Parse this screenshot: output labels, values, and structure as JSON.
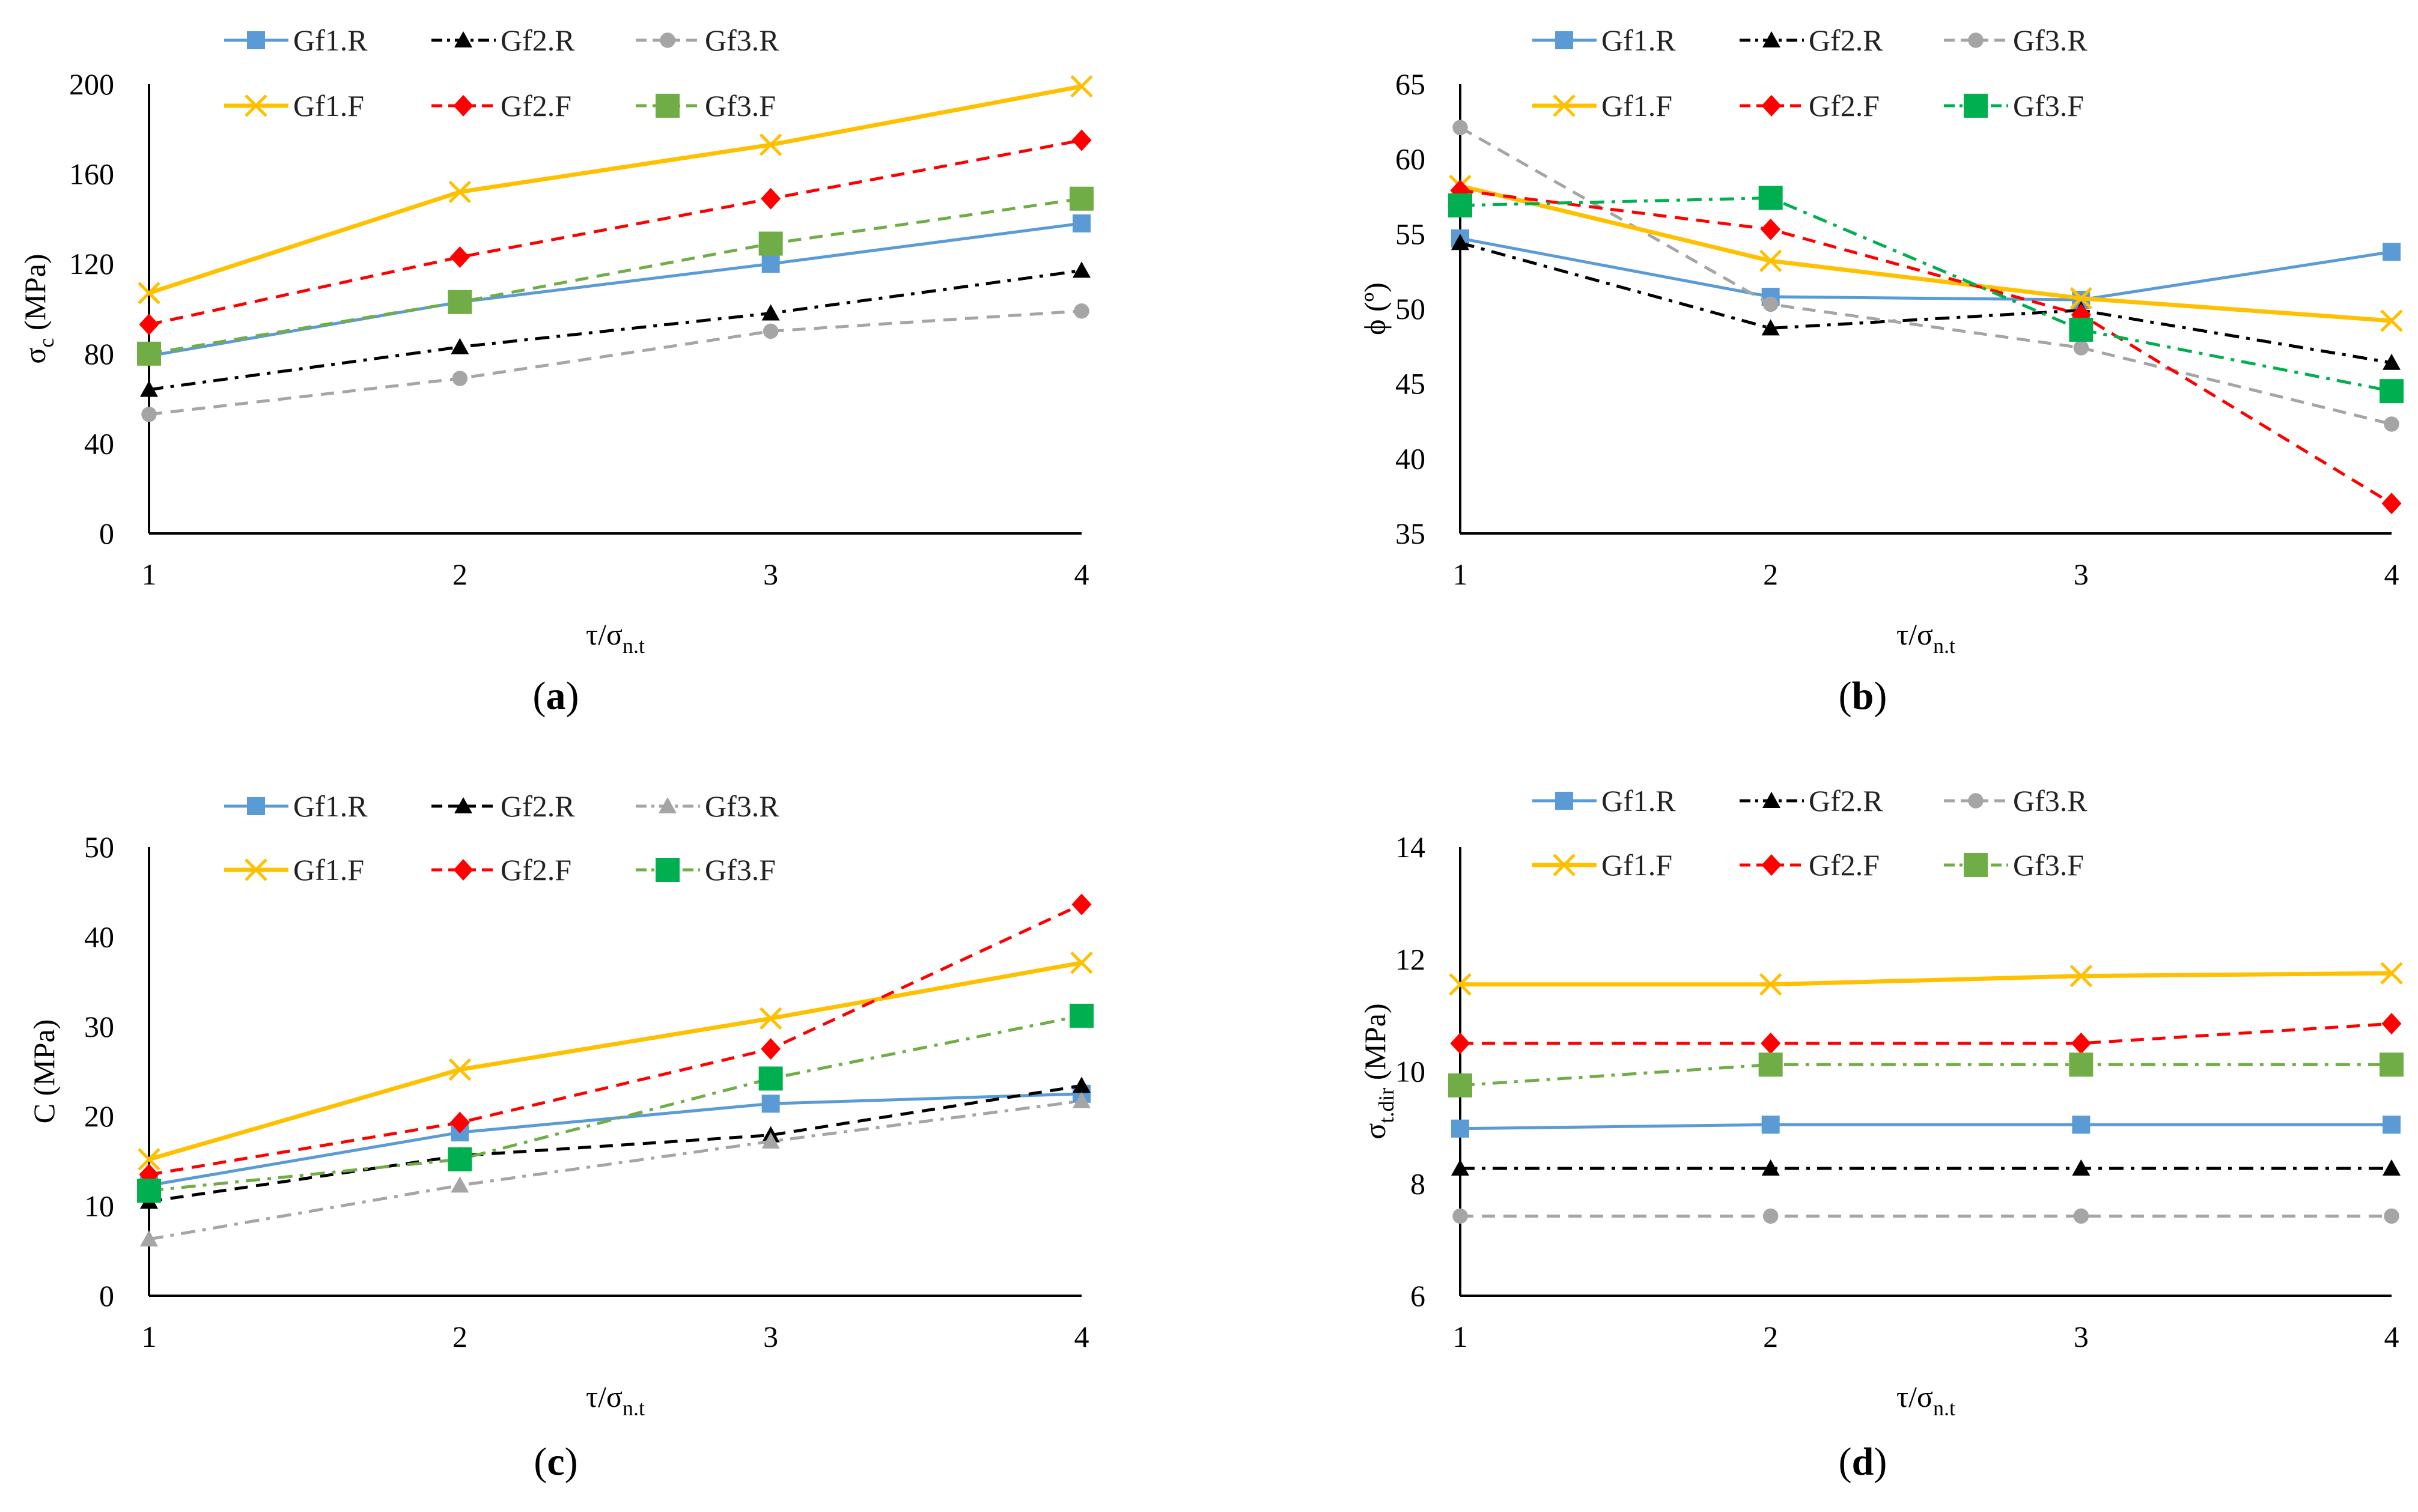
{
  "styles": {
    "Gf1.R": {
      "color": "#5B9BD5",
      "dash": "",
      "marker": "square",
      "width": 5
    },
    "Gf2.R": {
      "color": "#000000",
      "dash": "24,12,6,12",
      "marker": "triangle",
      "width": 5
    },
    "Gf3.R": {
      "color": "#A5A5A5",
      "dash": "22,14",
      "marker": "circle",
      "width": 5
    },
    "Gf1.F": {
      "color": "#FFC000",
      "dash": "",
      "marker": "x",
      "width": 7
    },
    "Gf2.F": {
      "color": "#FF0000",
      "dash": "22,14",
      "marker": "diamond",
      "width": 5
    },
    "Gf3.F": {
      "color": "#70AD47",
      "dash": "22,14",
      "marker": "square",
      "width": 5
    }
  },
  "chart_data": [
    {
      "type": "line",
      "panel": "a",
      "caption": {
        "open": "(",
        "letter": "a",
        "close": ")"
      },
      "xlabel": {
        "main": "τ/σ",
        "sub": "n.t"
      },
      "ylabel": {
        "main": "σ",
        "sub": "c",
        "tail": " (MPa)"
      },
      "x": [
        1,
        2,
        3,
        4
      ],
      "xticks": [
        "1",
        "2",
        "3",
        "4"
      ],
      "ylim": [
        0,
        200
      ],
      "yticks": [
        "0",
        "40",
        "80",
        "120",
        "160",
        "200"
      ],
      "series": [
        {
          "name": "Gf1.R",
          "values": [
            79,
            103,
            120,
            138
          ]
        },
        {
          "name": "Gf2.R",
          "values": [
            64,
            83,
            98,
            117
          ]
        },
        {
          "name": "Gf3.R",
          "values": [
            53,
            69,
            90,
            99
          ]
        },
        {
          "name": "Gf1.F",
          "values": [
            107,
            152,
            173,
            199
          ]
        },
        {
          "name": "Gf2.F",
          "values": [
            93,
            123,
            149,
            175
          ]
        },
        {
          "name": "Gf3.F",
          "values": [
            80,
            103,
            129,
            149
          ]
        }
      ]
    },
    {
      "type": "line",
      "panel": "b",
      "caption": {
        "open": "(",
        "letter": "b",
        "close": ")"
      },
      "xlabel": {
        "main": "τ/σ",
        "sub": "n.t"
      },
      "ylabel": {
        "main": "ϕ (º)",
        "sub": "",
        "tail": ""
      },
      "x": [
        1,
        2,
        3,
        4
      ],
      "xticks": [
        "1",
        "2",
        "3",
        "4"
      ],
      "ylim": [
        35,
        65
      ],
      "yticks": [
        "35",
        "40",
        "45",
        "50",
        "55",
        "60",
        "65"
      ],
      "series": [
        {
          "name": "Gf1.R",
          "values": [
            54.7,
            50.8,
            50.6,
            53.8
          ]
        },
        {
          "name": "Gf2.R",
          "values": [
            54.4,
            48.7,
            49.9,
            46.4
          ]
        },
        {
          "name": "Gf3.R",
          "values": [
            62.1,
            50.3,
            47.4,
            42.3
          ]
        },
        {
          "name": "Gf1.F",
          "values": [
            58.2,
            53.2,
            50.7,
            49.2
          ]
        },
        {
          "name": "Gf2.F",
          "values": [
            57.9,
            55.3,
            49.6,
            37.0
          ]
        },
        {
          "name": "Gf3.F",
          "values": [
            56.9,
            57.4,
            48.6,
            44.5
          ]
        }
      ],
      "style_overrides": {
        "Gf2.R": {
          "dash": "24,12,6,12"
        },
        "Gf3.F": {
          "color": "#00B050",
          "dash": "24,12,6,12"
        }
      }
    },
    {
      "type": "line",
      "panel": "c",
      "caption": {
        "open": "(",
        "letter": "c",
        "close": ")"
      },
      "xlabel": {
        "main": "τ/σ",
        "sub": "n.t"
      },
      "ylabel": {
        "main": "C (MPa)",
        "sub": "",
        "tail": ""
      },
      "x": [
        1,
        2,
        3,
        4
      ],
      "xticks": [
        "1",
        "2",
        "3",
        "4"
      ],
      "ylim": [
        0,
        50
      ],
      "yticks": [
        "0",
        "10",
        "20",
        "30",
        "40",
        "50"
      ],
      "series": [
        {
          "name": "Gf1.R",
          "values": [
            12.3,
            18.2,
            21.4,
            22.5
          ]
        },
        {
          "name": "Gf2.R",
          "values": [
            10.5,
            15.6,
            17.9,
            23.4
          ]
        },
        {
          "name": "Gf3.R",
          "values": [
            6.3,
            12.3,
            17.2,
            21.7
          ]
        },
        {
          "name": "Gf1.F",
          "values": [
            15.2,
            25.2,
            30.9,
            37.1
          ]
        },
        {
          "name": "Gf2.F",
          "values": [
            13.5,
            19.3,
            27.5,
            43.6
          ]
        },
        {
          "name": "Gf3.F",
          "values": [
            11.7,
            15.2,
            24.2,
            31.2
          ]
        }
      ],
      "style_overrides": {
        "Gf2.R": {
          "dash": "22,14"
        },
        "Gf3.R": {
          "marker": "triangle",
          "dash": "24,12,6,12"
        },
        "Gf3.F": {
          "color": "#00B050",
          "line": "#70AD47",
          "dash": "24,12,6,12"
        }
      }
    },
    {
      "type": "line",
      "panel": "d",
      "caption": {
        "open": "(",
        "letter": "d",
        "close": ")"
      },
      "xlabel": {
        "main": "τ/σ",
        "sub": "n.t"
      },
      "ylabel": {
        "main": "σ",
        "sub": "t.dir",
        "tail": " (MPa)"
      },
      "x": [
        1,
        2,
        3,
        4
      ],
      "xticks": [
        "1",
        "2",
        "3",
        "4"
      ],
      "ylim": [
        6,
        14
      ],
      "yticks": [
        "6",
        "8",
        "10",
        "12",
        "14"
      ],
      "series": [
        {
          "name": "Gf1.R",
          "values": [
            8.98,
            9.05,
            9.05,
            9.05
          ]
        },
        {
          "name": "Gf2.R",
          "values": [
            8.27,
            8.27,
            8.27,
            8.27
          ]
        },
        {
          "name": "Gf3.R",
          "values": [
            7.42,
            7.42,
            7.42,
            7.42
          ]
        },
        {
          "name": "Gf1.F",
          "values": [
            11.55,
            11.55,
            11.7,
            11.75
          ]
        },
        {
          "name": "Gf2.F",
          "values": [
            10.5,
            10.5,
            10.5,
            10.85
          ]
        },
        {
          "name": "Gf3.F",
          "values": [
            9.75,
            10.12,
            10.12,
            10.12
          ]
        }
      ],
      "style_overrides": {
        "Gf3.F": {
          "dash": "24,12,6,12"
        }
      }
    }
  ]
}
